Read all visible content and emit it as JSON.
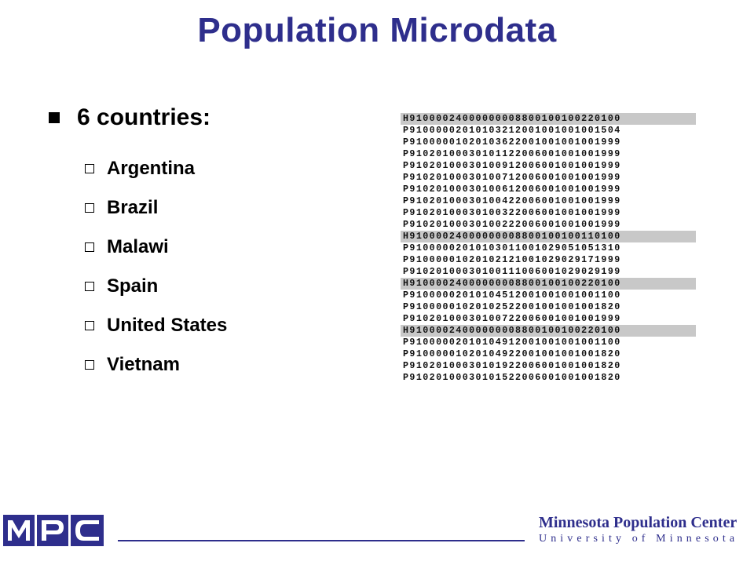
{
  "title": "Population Microdata",
  "bullet": "6 countries:",
  "countries": [
    "Argentina",
    "Brazil",
    "Malawi",
    "Spain",
    "United States",
    "Vietnam"
  ],
  "records": [
    {
      "text": "H91000024000000008800100100220100",
      "household": true
    },
    {
      "text": "P91000002010103212001001001001504",
      "household": false
    },
    {
      "text": "P91000001020103622001001001001999",
      "household": false
    },
    {
      "text": "P91020100030101122006001001001999",
      "household": false
    },
    {
      "text": "P91020100030100912006001001001999",
      "household": false
    },
    {
      "text": "P91020100030100712006001001001999",
      "household": false
    },
    {
      "text": "P91020100030100612006001001001999",
      "household": false
    },
    {
      "text": "P91020100030100422006001001001999",
      "household": false
    },
    {
      "text": "P91020100030100322006001001001999",
      "household": false
    },
    {
      "text": "P91020100030100222006001001001999",
      "household": false
    },
    {
      "text": "H91000024000000008800100100110100",
      "household": true
    },
    {
      "text": "P91000002010103011001029051051310",
      "household": false
    },
    {
      "text": "P91000001020102121001029029171999",
      "household": false
    },
    {
      "text": "P91020100030100111006001029029199",
      "household": false
    },
    {
      "text": "H91000024000000008800100100220100",
      "household": true
    },
    {
      "text": "P91000002010104512001001001001100",
      "household": false
    },
    {
      "text": "P91000001020102522001001001001820",
      "household": false
    },
    {
      "text": "P91020100030100722006001001001999",
      "household": false
    },
    {
      "text": "H91000024000000008800100100220100",
      "household": true
    },
    {
      "text": "P91000002010104912001001001001100",
      "household": false
    },
    {
      "text": "P91000001020104922001001001001820",
      "household": false
    },
    {
      "text": "P91020100030101922006001001001820",
      "household": false
    },
    {
      "text": "P91020100030101522006001001001820",
      "household": false
    }
  ],
  "footer": {
    "logo_text": "MPC",
    "org": "Minnesota Population Center",
    "university": "University of Minnesota"
  },
  "colors": {
    "title": "#2e2e8c",
    "household_row": "#c8c8c8",
    "logo": "#2e2e8c"
  }
}
